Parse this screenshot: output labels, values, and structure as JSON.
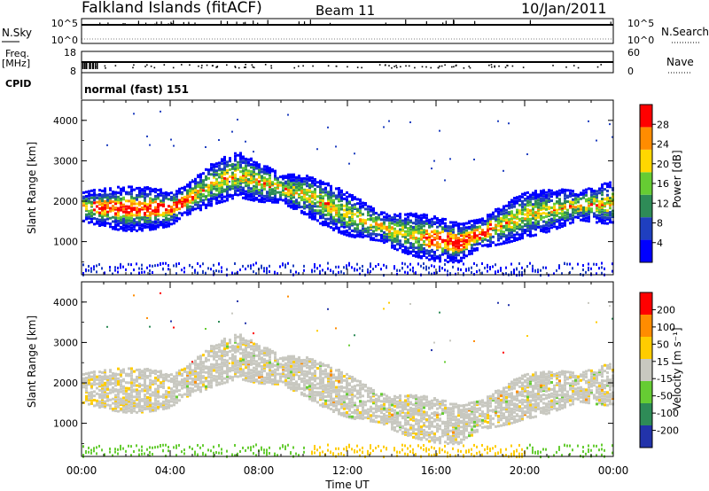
{
  "header": {
    "station": "Falkland Islands (fitACF)",
    "beam": "Beam 11",
    "date": "10/Jan/2011"
  },
  "noise_panel": {
    "left_label": "N.Sky",
    "right_label": "N.Search",
    "left_ticks": [
      "10^5",
      "10^0"
    ],
    "right_ticks": [
      "10^5",
      "10^0"
    ]
  },
  "freq_panel": {
    "left_label": "Freq.",
    "left_unit": "[MHz]",
    "right_label": "Nave",
    "left_ticks": [
      "18",
      "8"
    ],
    "right_ticks": [
      "60",
      "0"
    ]
  },
  "cpid": {
    "label": "CPID",
    "value": "normal (fast) 151"
  },
  "power_panel": {
    "ylabel": "Slant Range [km]",
    "yticks": [
      "4000",
      "3000",
      "2000",
      "1000"
    ],
    "colorbar_label": "Power [dB]",
    "colorbar_ticks": [
      "28",
      "24",
      "20",
      "16",
      "12",
      "8",
      "4"
    ],
    "colors": [
      "#0000ff",
      "#1f3fbf",
      "#2e8b57",
      "#66cc33",
      "#ffd700",
      "#ff8c00",
      "#ff0000"
    ]
  },
  "velocity_panel": {
    "ylabel": "Slant Range [km]",
    "yticks": [
      "4000",
      "3000",
      "2000",
      "1000"
    ],
    "colorbar_label": "Velocity [m s⁻¹]",
    "colorbar_ticks": [
      "200",
      "100",
      "50",
      "15",
      "-15",
      "-50",
      "-100",
      "-200"
    ],
    "colors": [
      "#2233aa",
      "#2e8b57",
      "#66cc33",
      "#c8c8c0",
      "#ffcc00",
      "#ff8c00",
      "#ff0000"
    ]
  },
  "x_axis": {
    "ticks": [
      "00:00",
      "04:00",
      "08:00",
      "12:00",
      "16:00",
      "20:00",
      "00:00"
    ],
    "label": "Time UT"
  },
  "chart_data": {
    "type": "heatmap",
    "x_range_hours": [
      0,
      24
    ],
    "y_range_km": [
      180,
      4500
    ],
    "echo_band_center_km": [
      [
        0,
        1900
      ],
      [
        2,
        1850
      ],
      [
        4,
        1850
      ],
      [
        6,
        2500
      ],
      [
        7,
        2700
      ],
      [
        8,
        2500
      ],
      [
        10,
        2200
      ],
      [
        12,
        1700
      ],
      [
        14,
        1300
      ],
      [
        16,
        1100
      ],
      [
        17,
        1000
      ],
      [
        18,
        1250
      ],
      [
        20,
        1700
      ],
      [
        22,
        1900
      ],
      [
        24,
        2000
      ]
    ]
  }
}
